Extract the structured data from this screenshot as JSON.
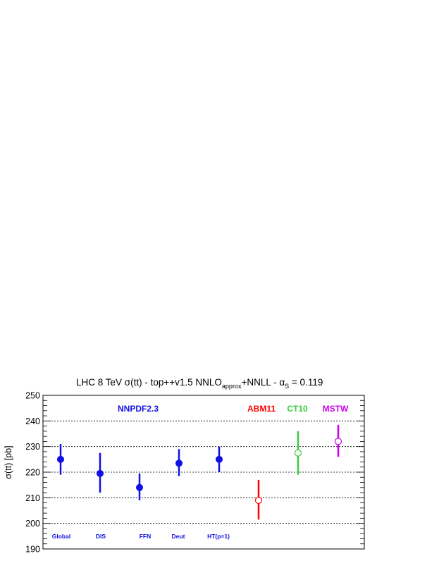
{
  "chart_data": {
    "type": "scatter",
    "title_parts": {
      "pre": "LHC 8 TeV σ(tt) - top++v1.5 NNLO",
      "sub1": "approx",
      "mid": "+NNLL - α",
      "sub2": "S",
      "post": " = 0.119"
    },
    "ylabel": "σ(tt) [pb]",
    "ylim": [
      190,
      250
    ],
    "y_ticks": [
      190,
      200,
      210,
      220,
      230,
      240,
      250
    ],
    "grid": "horizontal dotted",
    "points": [
      {
        "label": "Global",
        "value": 225,
        "err_low": 219,
        "err_high": 231,
        "color": "#1010e6",
        "marker": "filled-circle"
      },
      {
        "label": "DIS",
        "value": 219.5,
        "err_low": 212,
        "err_high": 227.5,
        "color": "#1010e6",
        "marker": "filled-circle"
      },
      {
        "label": "FFN",
        "value": 214,
        "err_low": 209,
        "err_high": 219.5,
        "color": "#1010e6",
        "marker": "filled-circle"
      },
      {
        "label": "Deut",
        "value": 223.5,
        "err_low": 218.5,
        "err_high": 229,
        "color": "#1010e6",
        "marker": "filled-circle"
      },
      {
        "label": "HT(p=1)",
        "value": 225,
        "err_low": 220,
        "err_high": 230,
        "color": "#1010e6",
        "marker": "filled-circle"
      },
      {
        "label": "",
        "value": 209,
        "err_low": 201.5,
        "err_high": 217,
        "color": "#ff0000",
        "marker": "open-circle"
      },
      {
        "label": "",
        "value": 227.5,
        "err_low": 219,
        "err_high": 236,
        "color": "#3ccc3c",
        "marker": "open-circle"
      },
      {
        "label": "",
        "value": 232,
        "err_low": 226,
        "err_high": 238.5,
        "color": "#cc00ee",
        "marker": "open-circle"
      }
    ],
    "groups": [
      {
        "name": "NNPDF2.3",
        "color": "#1010e6"
      },
      {
        "name": "ABM11",
        "color": "#ff0000"
      },
      {
        "name": "CT10",
        "color": "#3ccc3c"
      },
      {
        "name": "MSTW",
        "color": "#cc00ee"
      }
    ]
  }
}
